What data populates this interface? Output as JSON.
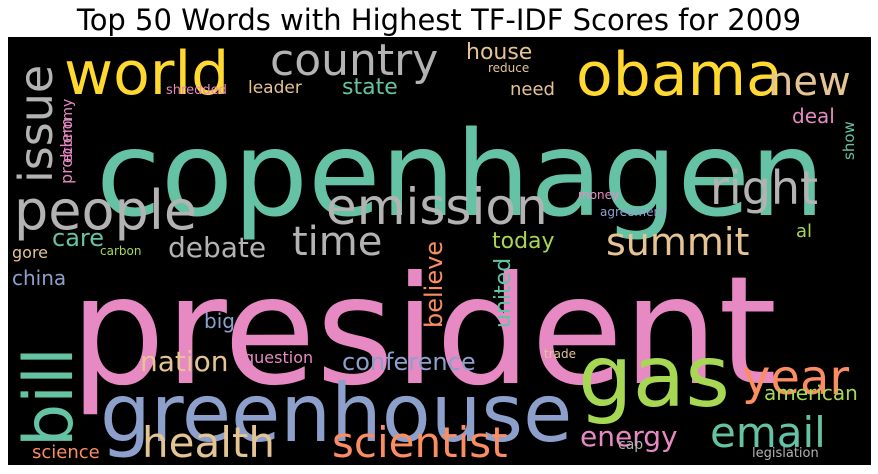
{
  "chart_data": {
    "type": "wordcloud",
    "title": "Top 50 Words with Highest TF-IDF Scores for 2009",
    "words": [
      {
        "text": "president",
        "color": "#e78ac3",
        "orient": "h"
      },
      {
        "text": "copenhagen",
        "color": "#66c2a5",
        "orient": "h"
      },
      {
        "text": "greenhouse",
        "color": "#8da0cb",
        "orient": "h"
      },
      {
        "text": "gas",
        "color": "#a6d854",
        "orient": "h"
      },
      {
        "text": "obama",
        "color": "#ffd92f",
        "orient": "h"
      },
      {
        "text": "world",
        "color": "#ffd92f",
        "orient": "h"
      },
      {
        "text": "people",
        "color": "#b3b3b3",
        "orient": "h"
      },
      {
        "text": "emission",
        "color": "#b3b3b3",
        "orient": "h"
      },
      {
        "text": "country",
        "color": "#b3b3b3",
        "orient": "h"
      },
      {
        "text": "bill",
        "color": "#66c2a5",
        "orient": "v"
      },
      {
        "text": "right",
        "color": "#b3b3b3",
        "orient": "h"
      },
      {
        "text": "issue",
        "color": "#b3b3b3",
        "orient": "v"
      },
      {
        "text": "new",
        "color": "#e5c494",
        "orient": "h"
      },
      {
        "text": "year",
        "color": "#fc8d62",
        "orient": "h"
      },
      {
        "text": "scientist",
        "color": "#fc8d62",
        "orient": "h"
      },
      {
        "text": "health",
        "color": "#e5c494",
        "orient": "h"
      },
      {
        "text": "summit",
        "color": "#e5c494",
        "orient": "h"
      },
      {
        "text": "email",
        "color": "#66c2a5",
        "orient": "h"
      },
      {
        "text": "time",
        "color": "#b3b3b3",
        "orient": "h"
      },
      {
        "text": "debate",
        "color": "#b3b3b3",
        "orient": "h"
      },
      {
        "text": "nation",
        "color": "#e5c494",
        "orient": "h"
      },
      {
        "text": "care",
        "color": "#66c2a5",
        "orient": "h"
      },
      {
        "text": "energy",
        "color": "#e78ac3",
        "orient": "h"
      },
      {
        "text": "conference",
        "color": "#8da0cb",
        "orient": "h"
      },
      {
        "text": "house",
        "color": "#e5c494",
        "orient": "h"
      },
      {
        "text": "state",
        "color": "#66c2a5",
        "orient": "h"
      },
      {
        "text": "believe",
        "color": "#fc8d62",
        "orient": "v"
      },
      {
        "text": "today",
        "color": "#a6d854",
        "orient": "h"
      },
      {
        "text": "united",
        "color": "#66c2a5",
        "orient": "v"
      },
      {
        "text": "american",
        "color": "#a6d854",
        "orient": "h"
      },
      {
        "text": "science",
        "color": "#fc8d62",
        "orient": "h"
      },
      {
        "text": "deal",
        "color": "#e78ac3",
        "orient": "h"
      },
      {
        "text": "need",
        "color": "#e5c494",
        "orient": "h"
      },
      {
        "text": "leader",
        "color": "#e5c494",
        "orient": "h"
      },
      {
        "text": "problem",
        "color": "#e78ac3",
        "orient": "v"
      },
      {
        "text": "china",
        "color": "#8da0cb",
        "orient": "h"
      },
      {
        "text": "gore",
        "color": "#e5c494",
        "orient": "h"
      },
      {
        "text": "big",
        "color": "#8da0cb",
        "orient": "h"
      },
      {
        "text": "question",
        "color": "#e78ac3",
        "orient": "h"
      },
      {
        "text": "al",
        "color": "#a6d854",
        "orient": "h"
      },
      {
        "text": "show",
        "color": "#66c2a5",
        "orient": "v"
      },
      {
        "text": "economy",
        "color": "#e78ac3",
        "orient": "v"
      },
      {
        "text": "legislation",
        "color": "#b3b3b3",
        "orient": "h"
      },
      {
        "text": "cap",
        "color": "#b3b3b3",
        "orient": "h"
      },
      {
        "text": "shredded",
        "color": "#e78ac3",
        "orient": "h"
      },
      {
        "text": "reduce",
        "color": "#e5c494",
        "orient": "h"
      },
      {
        "text": "agreement",
        "color": "#8da0cb",
        "orient": "h"
      },
      {
        "text": "money",
        "color": "#e78ac3",
        "orient": "h"
      },
      {
        "text": "trade",
        "color": "#e5c494",
        "orient": "h"
      },
      {
        "text": "carbon",
        "color": "#a6d854",
        "orient": "h"
      }
    ]
  }
}
